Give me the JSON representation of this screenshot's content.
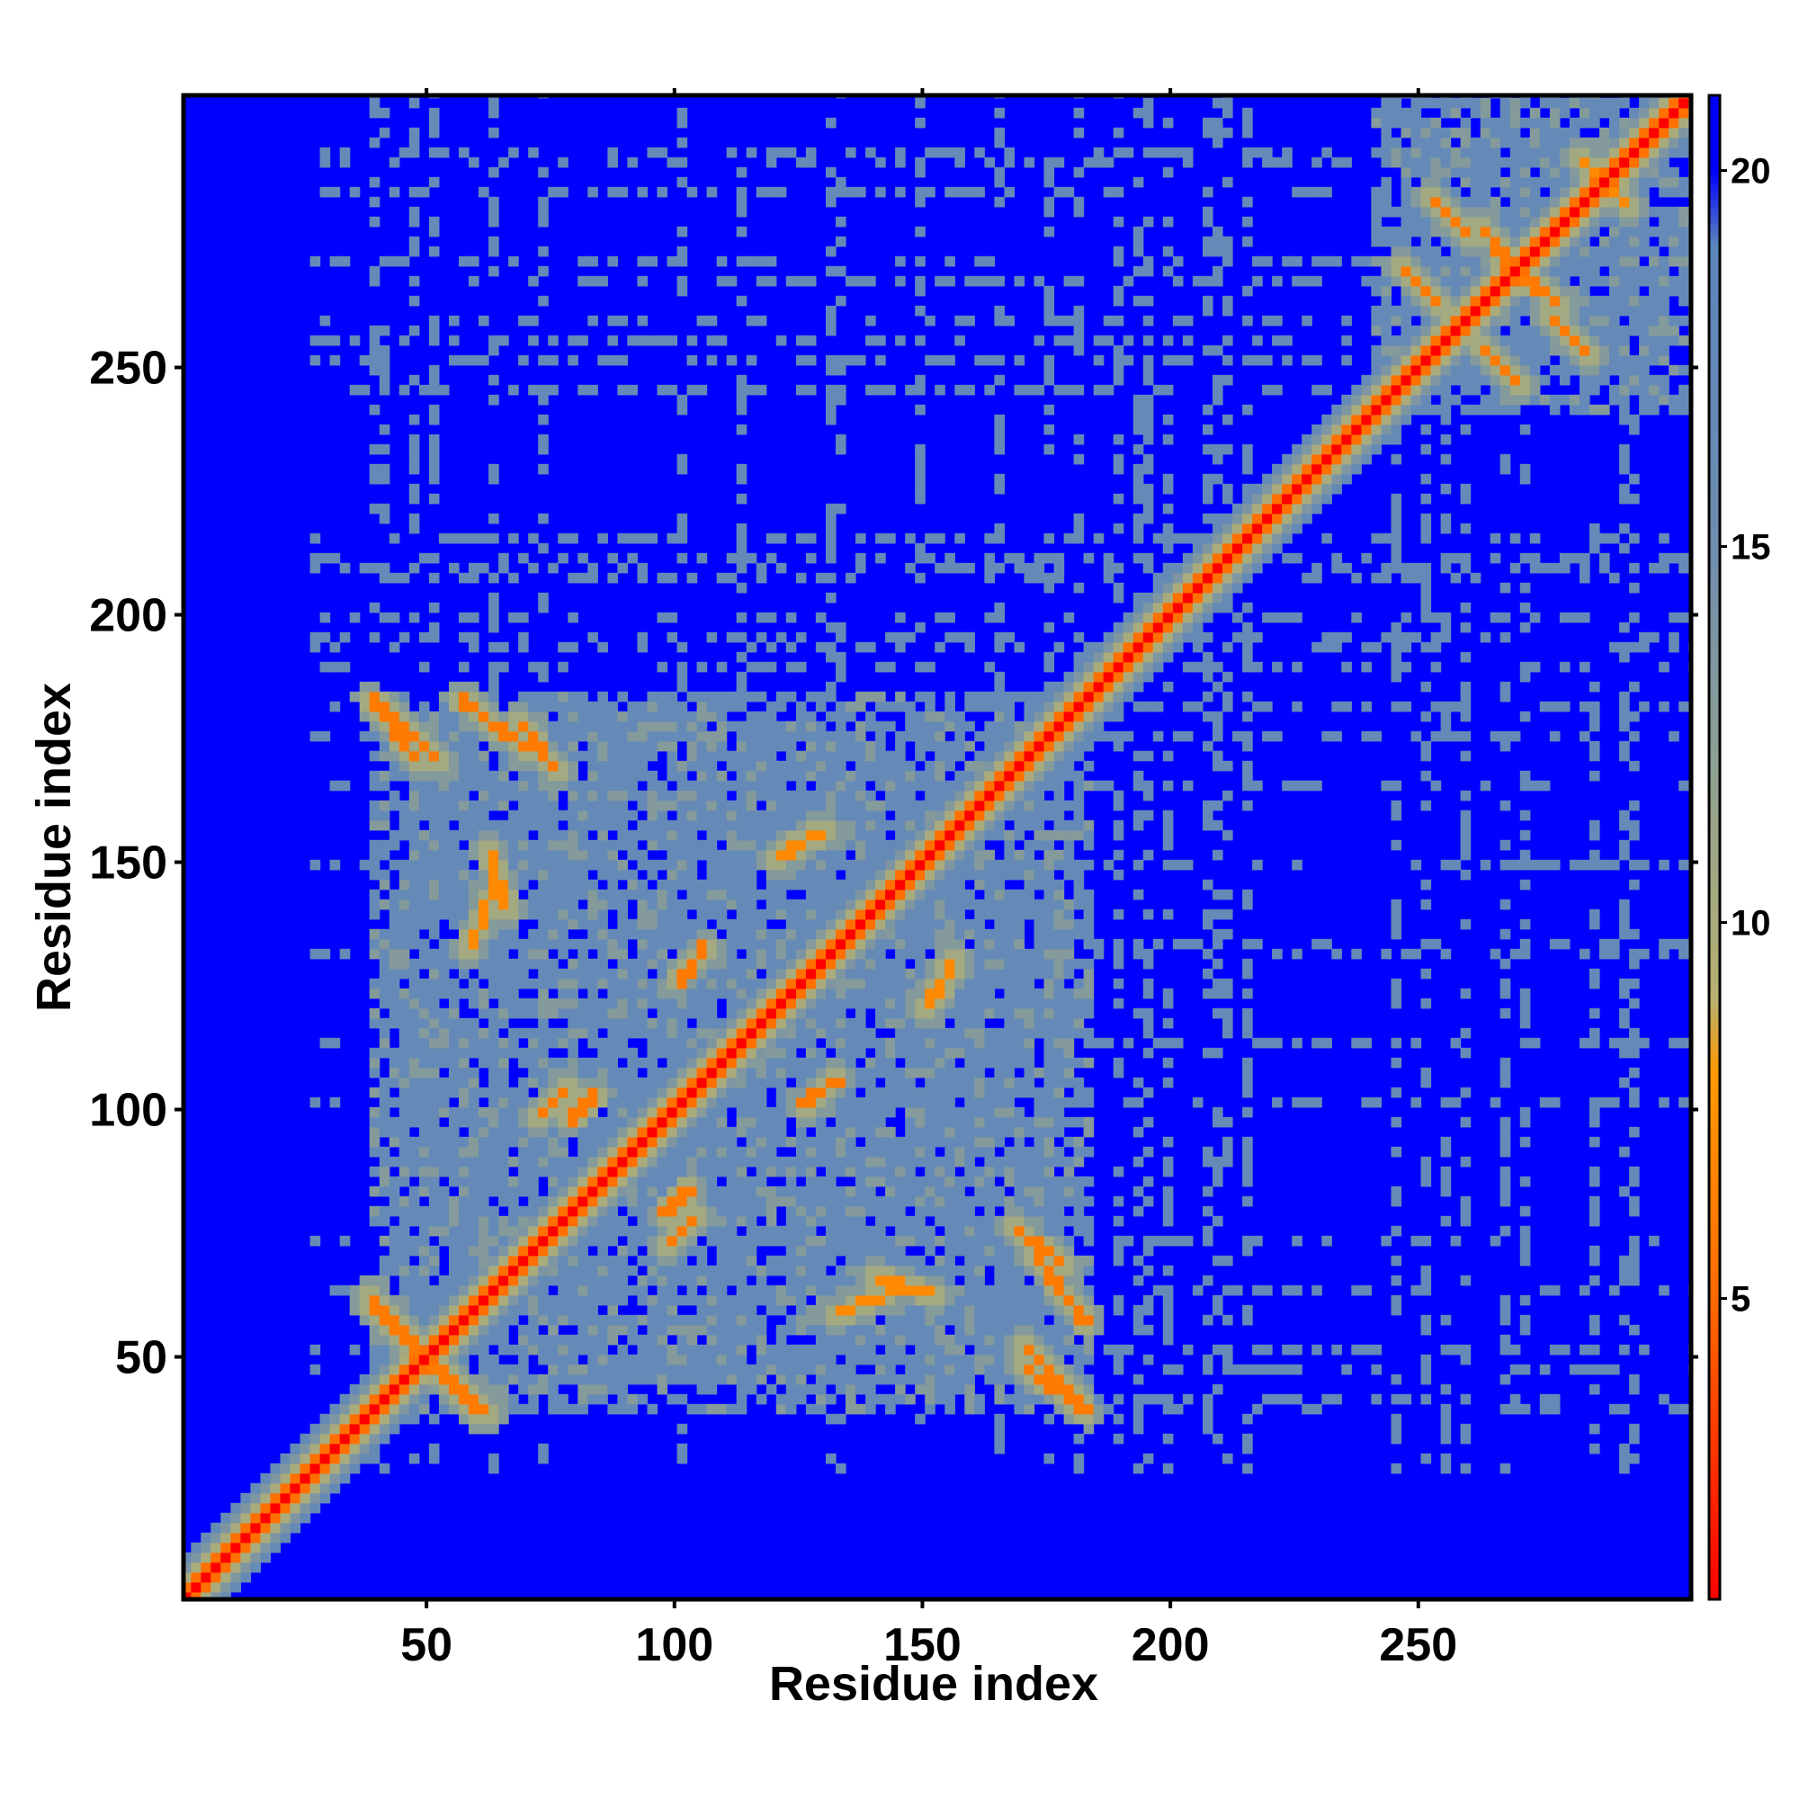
{
  "chart_data": {
    "type": "heatmap",
    "xlabel": "Residue index",
    "ylabel": "Residue index",
    "xlim": [
      1,
      305
    ],
    "ylim": [
      1,
      305
    ],
    "x_ticks": [
      "50",
      "100",
      "150",
      "200",
      "250"
    ],
    "y_ticks": [
      "50",
      "100",
      "150",
      "200",
      "250"
    ],
    "colorbar": {
      "ticks": [
        "5",
        "10",
        "15",
        "20"
      ],
      "range": [
        1,
        21
      ],
      "stops": [
        {
          "value": 1,
          "color": "#ff0000"
        },
        {
          "value": 5,
          "color": "#ff6a00"
        },
        {
          "value": 8,
          "color": "#ff9900"
        },
        {
          "value": 9,
          "color": "#b7b071"
        },
        {
          "value": 12,
          "color": "#8fa191"
        },
        {
          "value": 15,
          "color": "#6f8db0"
        },
        {
          "value": 19,
          "color": "#5a86bd"
        },
        {
          "value": 20,
          "color": "#0000ff"
        }
      ]
    },
    "description_free_notes": null,
    "diagonal_value": 1,
    "background_value": 21,
    "domains": [
      {
        "range": [
          38,
          183
        ],
        "value": 17
      },
      {
        "range": [
          240,
          305
        ],
        "value": 17
      }
    ],
    "contact_lines": [
      {
        "start": [
          38,
          60
        ],
        "end": [
          62,
          38
        ],
        "value": 6
      },
      {
        "start": [
          38,
          183
        ],
        "end": [
          52,
          170
        ],
        "value": 6
      },
      {
        "start": [
          68,
          178
        ],
        "end": [
          76,
          168
        ],
        "value": 6
      },
      {
        "start": [
          62,
          152
        ],
        "end": [
          66,
          140
        ],
        "value": 7
      },
      {
        "start": [
          172,
          70
        ],
        "end": [
          183,
          56
        ],
        "value": 6
      },
      {
        "start": [
          170,
          48
        ],
        "end": [
          183,
          38
        ],
        "value": 6
      },
      {
        "start": [
          100,
          125
        ],
        "end": [
          106,
          132
        ],
        "value": 6
      },
      {
        "start": [
          120,
          150
        ],
        "end": [
          128,
          156
        ],
        "value": 7
      },
      {
        "start": [
          125,
          100
        ],
        "end": [
          133,
          106
        ],
        "value": 6
      },
      {
        "start": [
          150,
          120
        ],
        "end": [
          156,
          130
        ],
        "value": 7
      },
      {
        "start": [
          78,
          97
        ],
        "end": [
          84,
          103
        ],
        "value": 6
      },
      {
        "start": [
          98,
          72
        ],
        "end": [
          104,
          78
        ],
        "value": 6
      },
      {
        "start": [
          132,
          58
        ],
        "end": [
          146,
          64
        ],
        "value": 7
      },
      {
        "start": [
          252,
          284
        ],
        "end": [
          260,
          276
        ],
        "value": 6
      },
      {
        "start": [
          262,
          254
        ],
        "end": [
          270,
          246
        ],
        "value": 6
      },
      {
        "start": [
          268,
          270
        ],
        "end": [
          278,
          262
        ],
        "value": 6
      },
      {
        "start": [
          286,
          290
        ],
        "end": [
          292,
          282
        ],
        "value": 7
      }
    ],
    "grid": false,
    "legend": "colorbar-right"
  }
}
